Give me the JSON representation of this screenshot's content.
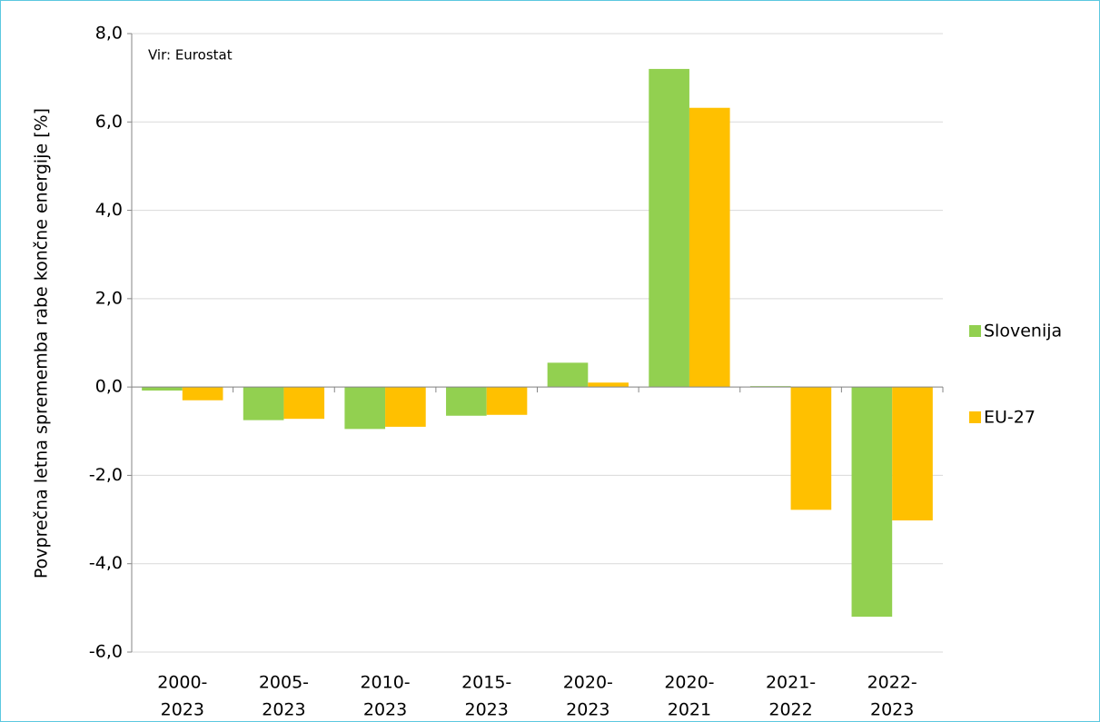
{
  "chart_data": {
    "type": "bar",
    "annotation": "Vir: Eurostat",
    "y_label": "Povprečna letna sprememba rabe končne energije [%]",
    "categories": [
      [
        "2000-",
        "2023"
      ],
      [
        "2005-",
        "2023"
      ],
      [
        "2010-",
        "2023"
      ],
      [
        "2015-",
        "2023"
      ],
      [
        "2020-",
        "2023"
      ],
      [
        "2020-",
        "2021"
      ],
      [
        "2021-",
        "2022"
      ],
      [
        "2022-",
        "2023"
      ]
    ],
    "series": [
      {
        "name": "Slovenija",
        "color": "#92d050",
        "values": [
          -0.08,
          -0.75,
          -0.95,
          -0.65,
          0.55,
          7.2,
          0.02,
          -5.2
        ]
      },
      {
        "name": "EU-27",
        "color": "#ffc000",
        "values": [
          -0.3,
          -0.72,
          -0.9,
          -0.63,
          0.1,
          6.32,
          -2.78,
          -3.02
        ]
      }
    ],
    "ylim": [
      -6,
      8
    ],
    "yticks": [
      {
        "value": -6,
        "label": "-6,0"
      },
      {
        "value": -4,
        "label": "-4,0"
      },
      {
        "value": -2,
        "label": "-2,0"
      },
      {
        "value": 0,
        "label": "0,0"
      },
      {
        "value": 2,
        "label": "2,0"
      },
      {
        "value": 4,
        "label": "4,0"
      },
      {
        "value": 6,
        "label": "6,0"
      },
      {
        "value": 8,
        "label": "8,0"
      }
    ],
    "grid": true,
    "legend": "right"
  }
}
